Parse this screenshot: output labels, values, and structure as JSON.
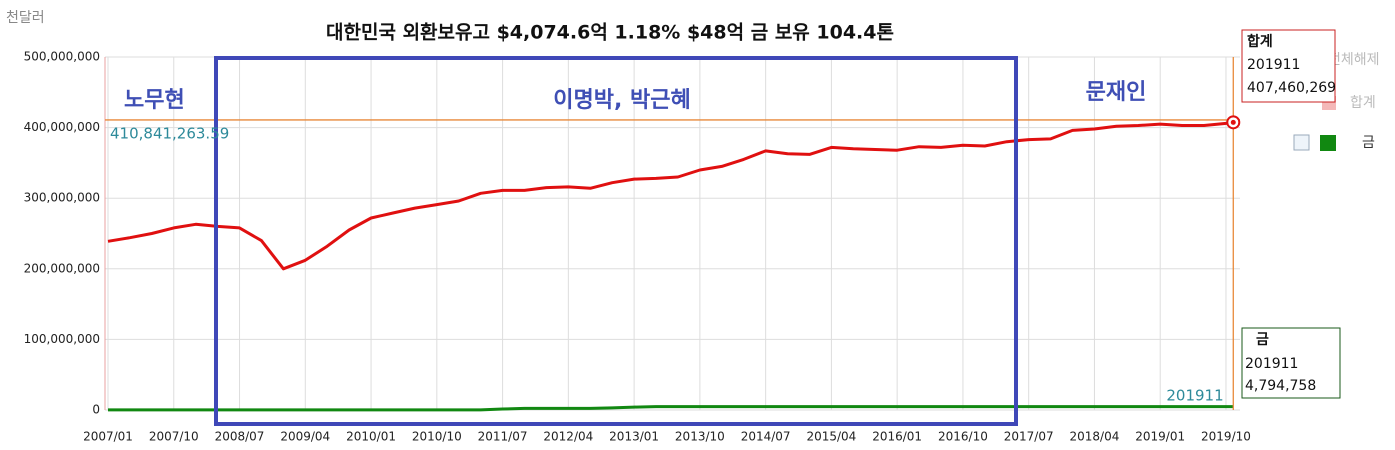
{
  "chart_data": {
    "type": "line",
    "title": "대한민국 외환보유고 $4,074.6억 1.18% $48억 금 보유 104.4톤",
    "unit_label": "천달러",
    "annotations": [
      "노무현",
      "이명박, 박근혜",
      "문재인"
    ],
    "x": [
      "2007/01",
      "2007/04",
      "2007/07",
      "2007/10",
      "2008/01",
      "2008/04",
      "2008/07",
      "2008/10",
      "2009/01",
      "2009/04",
      "2009/07",
      "2009/10",
      "2010/01",
      "2010/04",
      "2010/07",
      "2010/10",
      "2011/01",
      "2011/04",
      "2011/07",
      "2011/10",
      "2012/01",
      "2012/04",
      "2012/07",
      "2012/10",
      "2013/01",
      "2013/04",
      "2013/07",
      "2013/10",
      "2014/01",
      "2014/04",
      "2014/07",
      "2014/10",
      "2015/01",
      "2015/04",
      "2015/07",
      "2015/10",
      "2016/01",
      "2016/04",
      "2016/07",
      "2016/10",
      "2017/01",
      "2017/04",
      "2017/07",
      "2017/10",
      "2018/01",
      "2018/04",
      "2018/07",
      "2018/10",
      "2019/01",
      "2019/04",
      "2019/07",
      "2019/10",
      "2019/11"
    ],
    "series": [
      {
        "name": "합계",
        "color": "#e01010",
        "values": [
          239000000,
          244000000,
          250000000,
          258000000,
          263000000,
          260000000,
          258000000,
          240000000,
          200000000,
          212000000,
          232000000,
          255000000,
          272000000,
          279000000,
          286000000,
          291000000,
          296000000,
          307000000,
          311000000,
          311000000,
          315000000,
          316000000,
          314000000,
          322000000,
          327000000,
          328000000,
          330000000,
          340000000,
          345000000,
          355000000,
          367000000,
          363000000,
          362000000,
          372000000,
          370000000,
          369000000,
          368000000,
          373000000,
          372000000,
          375000000,
          374000000,
          380000000,
          383000000,
          384000000,
          396000000,
          398000000,
          402000000,
          403000000,
          405000000,
          403000000,
          403000000,
          406000000,
          407460269
        ]
      },
      {
        "name": "금",
        "color": "#118811",
        "values": [
          80000,
          80000,
          80000,
          80000,
          80000,
          80000,
          80000,
          80000,
          80000,
          80000,
          80000,
          80000,
          80000,
          80000,
          80000,
          80000,
          80000,
          80000,
          1400000,
          2200000,
          2200000,
          2200000,
          2200000,
          3000000,
          4100000,
          4794758,
          4794758,
          4794758,
          4794758,
          4794758,
          4794758,
          4794758,
          4794758,
          4794758,
          4794758,
          4794758,
          4794758,
          4794758,
          4794758,
          4794758,
          4794758,
          4794758,
          4794758,
          4794758,
          4794758,
          4794758,
          4794758,
          4794758,
          4794758,
          4794758,
          4794758,
          4794758,
          4794758
        ]
      }
    ],
    "xticks": [
      "2007/01",
      "2007/10",
      "2008/07",
      "2009/04",
      "2010/01",
      "2010/10",
      "2011/07",
      "2012/04",
      "2013/01",
      "2013/10",
      "2014/07",
      "2015/04",
      "2016/01",
      "2016/10",
      "2017/07",
      "2018/04",
      "2019/01",
      "2019/10"
    ],
    "ylim": [
      0,
      500000000
    ],
    "yticks": [
      0,
      {
        "value": 100000000,
        "label": "100,000,000"
      },
      {
        "value": 200000000,
        "label": "200,000,000"
      },
      {
        "value": 300000000,
        "label": "300,000,000"
      },
      {
        "value": 400000000,
        "label": "400,000,000"
      },
      {
        "value": 500000000,
        "label": "500,000,000"
      }
    ],
    "grid": true,
    "reference_line": {
      "value": 410841263.59,
      "label": "410,841,263.59",
      "color": "#e8893a"
    },
    "last_period": "201911",
    "legend_toggle": "전체해제",
    "tooltips": [
      {
        "label": "407,460,269"
      },
      {
        "label": "4,794,758"
      }
    ]
  }
}
